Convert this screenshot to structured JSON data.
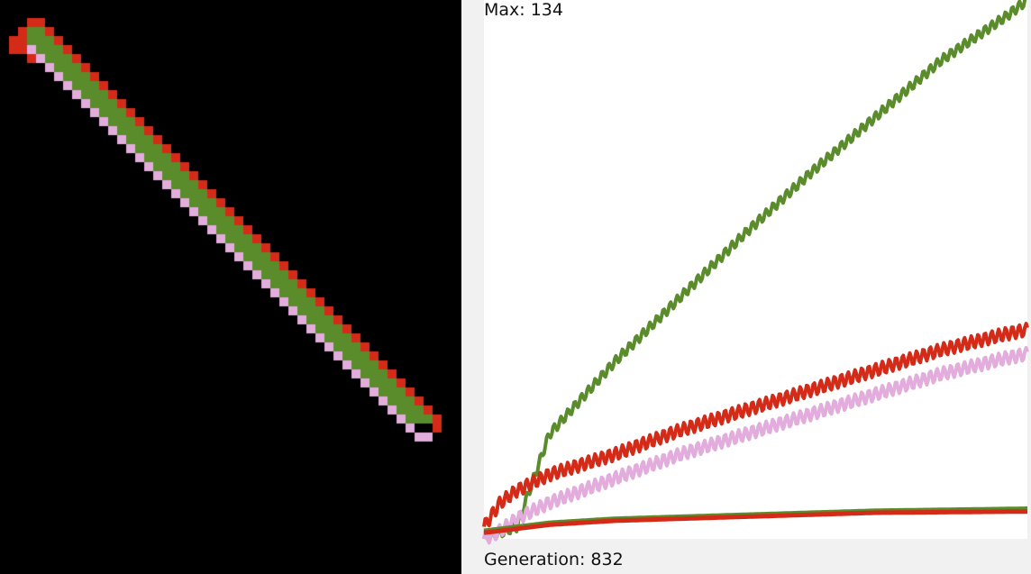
{
  "simulation": {
    "background": "#000000",
    "cell_colors": {
      "red": "#d42a18",
      "green": "#5a8c2b",
      "pink": "#e2acdc"
    }
  },
  "graph": {
    "max_label": "Max: 134",
    "generation_label": "Generation: 832",
    "panel_background": "#f1f1f1",
    "plot_background": "#ffffff"
  },
  "chart_data": {
    "type": "line",
    "xlim": [
      0,
      832
    ],
    "ylim": [
      0,
      134
    ],
    "grid": false,
    "legend": "none",
    "series": [
      {
        "color": "#5a8c2b",
        "x": [
          0,
          50,
          100,
          200,
          300,
          400,
          500,
          600,
          700,
          800,
          832
        ],
        "y": [
          0,
          3,
          26,
          44,
          60,
          76,
          91,
          105,
          119,
          130,
          134
        ],
        "wave_amplitude": 1.2
      },
      {
        "color": "#d42a18",
        "x": [
          0,
          25,
          50,
          100,
          200,
          300,
          400,
          500,
          600,
          700,
          800,
          832
        ],
        "y": [
          3,
          9,
          12,
          16,
          21,
          27,
          32,
          37,
          42,
          47,
          51,
          52
        ],
        "wave_amplitude": 1.6
      },
      {
        "color": "#e2acdc",
        "x": [
          0,
          25,
          50,
          100,
          200,
          300,
          400,
          500,
          600,
          700,
          800,
          832
        ],
        "y": [
          0,
          2,
          5,
          9,
          15,
          21,
          26,
          31,
          36,
          41,
          45,
          46
        ],
        "wave_amplitude": 1.6
      },
      {
        "color": "#5a8c2b",
        "x": [
          0,
          100,
          200,
          400,
          600,
          832
        ],
        "y": [
          2,
          4,
          5,
          6,
          7,
          7.5
        ],
        "wave_amplitude": 0
      },
      {
        "color": "#d42a18",
        "x": [
          0,
          100,
          200,
          400,
          600,
          832
        ],
        "y": [
          1.5,
          3.5,
          4.5,
          5.5,
          6.5,
          6.8
        ],
        "wave_amplitude": 0
      }
    ]
  }
}
